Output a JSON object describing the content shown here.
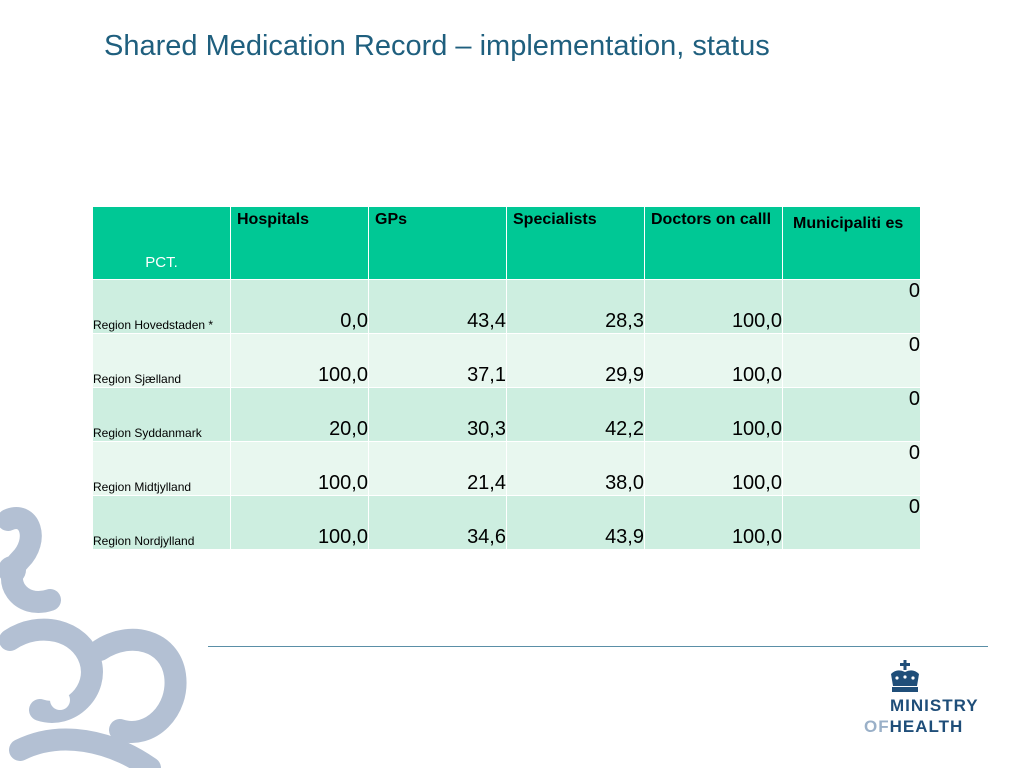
{
  "title": "Shared Medication Record – implementation, status",
  "table": {
    "corner_label": "PCT.",
    "headers": [
      "Hospitals",
      "GPs",
      "Specialists",
      "Doctors on calll",
      "Municipaliti es"
    ],
    "rows": [
      {
        "region": "Region Hovedstaden *",
        "values": [
          "0,0",
          "43,4",
          "28,3",
          "100,0",
          "0"
        ]
      },
      {
        "region": "Region Sjælland",
        "values": [
          "100,0",
          "37,1",
          "29,9",
          "100,0",
          "0"
        ]
      },
      {
        "region": "Region Syddanmark",
        "values": [
          "20,0",
          "30,3",
          "42,2",
          "100,0",
          "0"
        ]
      },
      {
        "region": "Region Midtjylland",
        "values": [
          "100,0",
          "21,4",
          "38,0",
          "100,0",
          "0"
        ]
      },
      {
        "region": "Region Nordjylland",
        "values": [
          "100,0",
          "34,6",
          "43,9",
          "100,0",
          "0"
        ]
      }
    ]
  },
  "logo": {
    "line1": "MINISTRY",
    "of": "OF",
    "health": "HEALTH"
  },
  "colors": {
    "header": "#00c895",
    "row_odd": "#cdeee0",
    "row_even": "#e8f7ef",
    "title": "#1f5f7e",
    "logo": "#1f4e79"
  }
}
